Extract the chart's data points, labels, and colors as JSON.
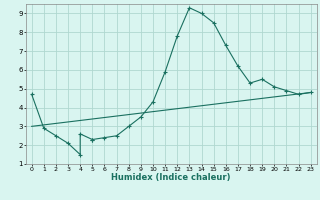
{
  "title": "",
  "xlabel": "Humidex (Indice chaleur)",
  "ylabel": "",
  "background_color": "#d9f5f0",
  "grid_color": "#b0d8d0",
  "line_color": "#1a7060",
  "xlim": [
    -0.5,
    23.5
  ],
  "ylim": [
    1,
    9.5
  ],
  "x_ticks": [
    0,
    1,
    2,
    3,
    4,
    5,
    6,
    7,
    8,
    9,
    10,
    11,
    12,
    13,
    14,
    15,
    16,
    17,
    18,
    19,
    20,
    21,
    22,
    23
  ],
  "y_ticks": [
    1,
    2,
    3,
    4,
    5,
    6,
    7,
    8,
    9
  ],
  "curve1_x": [
    0,
    1,
    2,
    3,
    4,
    4,
    5,
    5,
    6,
    7,
    8,
    9,
    10,
    11,
    12,
    13,
    14,
    15,
    16,
    17,
    18,
    19,
    20,
    21,
    22,
    23
  ],
  "curve1_y": [
    4.7,
    2.9,
    2.5,
    2.1,
    1.5,
    2.6,
    2.3,
    2.3,
    2.4,
    2.5,
    3.0,
    3.5,
    4.3,
    5.9,
    7.8,
    9.3,
    9.0,
    8.5,
    7.3,
    6.2,
    5.3,
    5.5,
    5.1,
    4.9,
    4.7,
    4.8
  ],
  "curve2_x": [
    0,
    23
  ],
  "curve2_y": [
    3.0,
    4.8
  ],
  "marker": "+"
}
